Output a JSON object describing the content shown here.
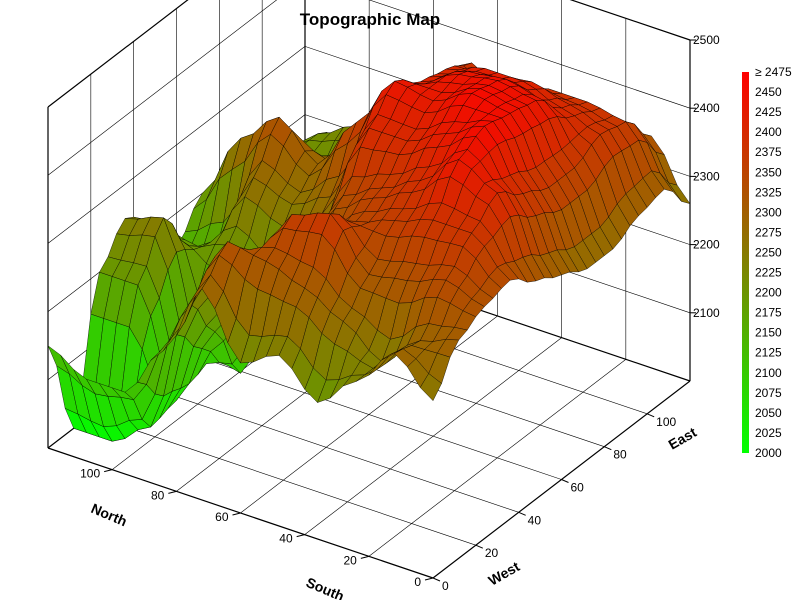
{
  "chart_data": {
    "type": "surface3d",
    "title": "Topographic Map",
    "z_axis": {
      "ticks": [
        "2100",
        "2200",
        "2300",
        "2400",
        "2500"
      ],
      "range": [
        2000,
        2500
      ]
    },
    "x_axis": {
      "name_north": "North",
      "name_south": "South",
      "ticks": [
        "0",
        "20",
        "40",
        "60",
        "80",
        "100"
      ],
      "range": [
        0,
        120
      ]
    },
    "y_axis": {
      "name_west": "West",
      "name_east": "East",
      "ticks": [
        "0",
        "20",
        "40",
        "60",
        "80",
        "100"
      ],
      "range": [
        0,
        120
      ]
    },
    "legend": {
      "placement": "right",
      "labels": [
        "≥ 2475",
        "2450",
        "2425",
        "2400",
        "2375",
        "2350",
        "2325",
        "2300",
        "2275",
        "2250",
        "2225",
        "2200",
        "2175",
        "2150",
        "2125",
        "2100",
        "2075",
        "2050",
        "2025",
        "2000"
      ],
      "color_low": "#00ff00",
      "color_mid": "#808000",
      "color_high": "#ff0000"
    },
    "elevation_grid": {
      "x": [
        0,
        12,
        24,
        36,
        48,
        60,
        72,
        84,
        96,
        108,
        120
      ],
      "y": [
        0,
        12,
        24,
        36,
        48,
        60,
        72,
        84,
        96,
        108,
        120
      ],
      "z": [
        [
          2260,
          2320,
          2340,
          2350,
          2320,
          2300,
          2280,
          2280,
          2300,
          2310,
          2260
        ],
        [
          2310,
          2300,
          2360,
          2400,
          2430,
          2400,
          2380,
          2380,
          2400,
          2390,
          2340
        ],
        [
          2250,
          2250,
          2340,
          2400,
          2460,
          2480,
          2470,
          2460,
          2420,
          2400,
          2290
        ],
        [
          2200,
          2290,
          2330,
          2380,
          2410,
          2450,
          2480,
          2470,
          2440,
          2400,
          2300
        ],
        [
          2250,
          2320,
          2400,
          2360,
          2380,
          2420,
          2450,
          2460,
          2440,
          2360,
          2270
        ],
        [
          2220,
          2340,
          2380,
          2310,
          2350,
          2420,
          2460,
          2430,
          2420,
          2400,
          2280
        ],
        [
          2310,
          2350,
          2270,
          2200,
          2240,
          2300,
          2380,
          2320,
          2350,
          2360,
          2270
        ],
        [
          2200,
          2240,
          2170,
          2080,
          2180,
          2270,
          2300,
          2290,
          2280,
          2300,
          2200
        ],
        [
          2120,
          2040,
          2050,
          2100,
          2220,
          2290,
          2350,
          2240,
          2200,
          2250,
          2130
        ],
        [
          2120,
          2000,
          2200,
          2270,
          2200,
          2160,
          2300,
          2210,
          2220,
          2220,
          2190
        ],
        [
          2150,
          2000,
          2200,
          2250,
          2220,
          2150,
          2200,
          2200,
          2200,
          2160,
          2080
        ]
      ]
    }
  }
}
